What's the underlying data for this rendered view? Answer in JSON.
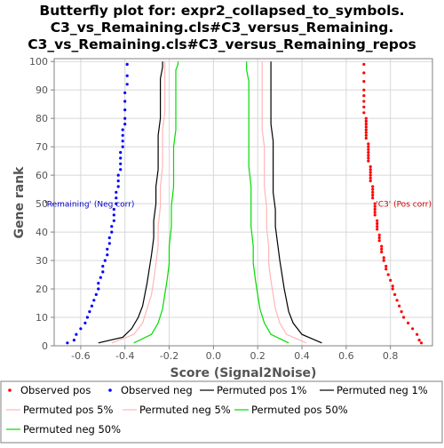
{
  "chart_data": {
    "type": "line",
    "title_lines": [
      "Butterfly plot for: expr2_collapsed_to_symbols.",
      "C3_vs_Remaining.cls#C3_versus_Remaining.",
      "C3_vs_Remaining.cls#C3_versus_Remaining_repos"
    ],
    "xlabel": "Score (Signal2Noise)",
    "ylabel": "Gene rank",
    "xlim": [
      -0.72,
      0.99
    ],
    "ylim": [
      0,
      101
    ],
    "x_ticks": [
      "-0.6",
      "-0.4",
      "-0.2",
      "0.0",
      "0.2",
      "0.4",
      "0.6",
      "0.8"
    ],
    "y_ticks": [
      "0",
      "10",
      "20",
      "30",
      "40",
      "50",
      "60",
      "70",
      "80",
      "90",
      "100"
    ],
    "grid": true,
    "annotations": [
      {
        "text": "'Remaining' (Neg corr)",
        "x": -0.56,
        "y": 49,
        "color": "#0000cc"
      },
      {
        "text": "'C3' (Pos corr)",
        "x": 0.86,
        "y": 49,
        "color": "#cc0000"
      }
    ],
    "legend_position": "bottom",
    "series": [
      {
        "name": "Observed pos",
        "kind": "points",
        "color": "#ff0000",
        "x": [
          0.94,
          0.93,
          0.92,
          0.9,
          0.88,
          0.86,
          0.85,
          0.84,
          0.83,
          0.82,
          0.81,
          0.81,
          0.8,
          0.79,
          0.78,
          0.78,
          0.77,
          0.77,
          0.76,
          0.76,
          0.76,
          0.75,
          0.75,
          0.75,
          0.74,
          0.74,
          0.74,
          0.74,
          0.73,
          0.73,
          0.73,
          0.73,
          0.73,
          0.72,
          0.72,
          0.72,
          0.72,
          0.72,
          0.71,
          0.71,
          0.71,
          0.71,
          0.71,
          0.71,
          0.7,
          0.7,
          0.7,
          0.7,
          0.7,
          0.7,
          0.7,
          0.69,
          0.69,
          0.69,
          0.69,
          0.69,
          0.69,
          0.69,
          0.69,
          0.68,
          0.68,
          0.68,
          0.68,
          0.68,
          0.68,
          0.68,
          0.68
        ],
        "y": [
          1,
          2,
          4,
          6,
          8,
          10,
          12,
          14,
          16,
          18,
          20,
          21,
          23,
          25,
          27,
          28,
          30,
          31,
          33,
          34,
          35,
          37,
          38,
          39,
          41,
          42,
          43,
          44,
          46,
          47,
          48,
          49,
          50,
          52,
          53,
          54,
          55,
          56,
          58,
          59,
          60,
          61,
          62,
          63,
          65,
          66,
          67,
          68,
          69,
          70,
          71,
          73,
          74,
          75,
          76,
          77,
          78,
          79,
          80,
          82,
          84,
          86,
          88,
          90,
          93,
          96,
          99
        ]
      },
      {
        "name": "Observed neg",
        "kind": "points",
        "color": "#0000ff",
        "x": [
          -0.66,
          -0.63,
          -0.62,
          -0.6,
          -0.58,
          -0.57,
          -0.56,
          -0.55,
          -0.54,
          -0.53,
          -0.52,
          -0.52,
          -0.51,
          -0.5,
          -0.5,
          -0.49,
          -0.48,
          -0.48,
          -0.47,
          -0.47,
          -0.46,
          -0.46,
          -0.45,
          -0.45,
          -0.45,
          -0.44,
          -0.44,
          -0.44,
          -0.43,
          -0.43,
          -0.43,
          -0.42,
          -0.42,
          -0.42,
          -0.42,
          -0.41,
          -0.41,
          -0.41,
          -0.41,
          -0.4,
          -0.4,
          -0.4,
          -0.4,
          -0.4,
          -0.39,
          -0.39,
          -0.39
        ],
        "y": [
          1,
          2,
          4,
          6,
          8,
          10,
          12,
          14,
          16,
          18,
          20,
          22,
          24,
          26,
          28,
          30,
          32,
          34,
          36,
          38,
          40,
          42,
          44,
          46,
          48,
          50,
          52,
          54,
          56,
          58,
          60,
          62,
          64,
          66,
          68,
          70,
          72,
          74,
          76,
          78,
          80,
          83,
          86,
          89,
          92,
          95,
          99
        ]
      },
      {
        "name": "Permuted pos 1%",
        "kind": "line",
        "color": "#000000",
        "x": [
          0.49,
          0.4,
          0.36,
          0.34,
          0.33,
          0.32,
          0.31,
          0.3,
          0.29,
          0.28,
          0.28,
          0.27,
          0.27,
          0.27,
          0.27,
          0.26,
          0.26,
          0.26,
          0.26,
          0.26,
          0.26,
          0.26
        ],
        "y": [
          1,
          4,
          8,
          12,
          16,
          20,
          25,
          30,
          36,
          42,
          48,
          54,
          60,
          66,
          72,
          78,
          84,
          88,
          92,
          96,
          99,
          100
        ]
      },
      {
        "name": "Permuted neg 1%",
        "kind": "line",
        "color": "#000000",
        "x": [
          -0.52,
          -0.41,
          -0.37,
          -0.34,
          -0.32,
          -0.31,
          -0.3,
          -0.29,
          -0.28,
          -0.27,
          -0.27,
          -0.26,
          -0.26,
          -0.25,
          -0.25,
          -0.25,
          -0.24,
          -0.24,
          -0.24,
          -0.24,
          -0.23,
          -0.23
        ],
        "y": [
          1,
          3,
          6,
          10,
          14,
          18,
          22,
          27,
          32,
          38,
          44,
          50,
          56,
          62,
          68,
          74,
          80,
          85,
          90,
          94,
          98,
          100
        ]
      },
      {
        "name": "Permuted pos 5%",
        "kind": "line",
        "color": "#ffb6b6",
        "x": [
          0.42,
          0.33,
          0.3,
          0.28,
          0.27,
          0.26,
          0.25,
          0.25,
          0.24,
          0.24,
          0.23,
          0.23,
          0.23,
          0.22,
          0.22,
          0.22,
          0.22,
          0.22,
          0.22,
          0.22
        ],
        "y": [
          1,
          4,
          8,
          13,
          18,
          23,
          29,
          35,
          42,
          49,
          56,
          63,
          70,
          76,
          82,
          88,
          93,
          97,
          99,
          100
        ]
      },
      {
        "name": "Permuted neg 5%",
        "kind": "line",
        "color": "#ffb6b6",
        "x": [
          -0.46,
          -0.36,
          -0.32,
          -0.3,
          -0.28,
          -0.27,
          -0.26,
          -0.25,
          -0.25,
          -0.24,
          -0.24,
          -0.23,
          -0.23,
          -0.23,
          -0.22,
          -0.22,
          -0.22,
          -0.22,
          -0.22,
          -0.22
        ],
        "y": [
          1,
          4,
          8,
          13,
          18,
          23,
          29,
          35,
          42,
          49,
          56,
          63,
          70,
          76,
          82,
          88,
          93,
          97,
          99,
          100
        ]
      },
      {
        "name": "Permuted pos 50%",
        "kind": "line",
        "color": "#00dd00",
        "x": [
          0.34,
          0.26,
          0.23,
          0.21,
          0.2,
          0.19,
          0.18,
          0.18,
          0.17,
          0.17,
          0.17,
          0.16,
          0.16,
          0.16,
          0.16,
          0.16,
          0.16,
          0.15,
          0.15,
          0.15
        ],
        "y": [
          1,
          4,
          8,
          13,
          18,
          23,
          29,
          35,
          42,
          49,
          56,
          63,
          70,
          76,
          82,
          88,
          93,
          97,
          99,
          100
        ]
      },
      {
        "name": "Permuted neg 50%",
        "kind": "line",
        "color": "#00dd00",
        "x": [
          -0.36,
          -0.28,
          -0.25,
          -0.23,
          -0.22,
          -0.21,
          -0.2,
          -0.2,
          -0.19,
          -0.19,
          -0.18,
          -0.18,
          -0.18,
          -0.17,
          -0.17,
          -0.17,
          -0.17,
          -0.17,
          -0.16,
          -0.16
        ],
        "y": [
          1,
          4,
          8,
          13,
          18,
          23,
          29,
          35,
          42,
          49,
          56,
          63,
          70,
          76,
          82,
          88,
          93,
          97,
          99,
          100
        ]
      }
    ]
  },
  "colors": {
    "grid": "#d8d8d8",
    "axis": "#808080",
    "legend_border": "#808080",
    "background": "#ffffff"
  }
}
